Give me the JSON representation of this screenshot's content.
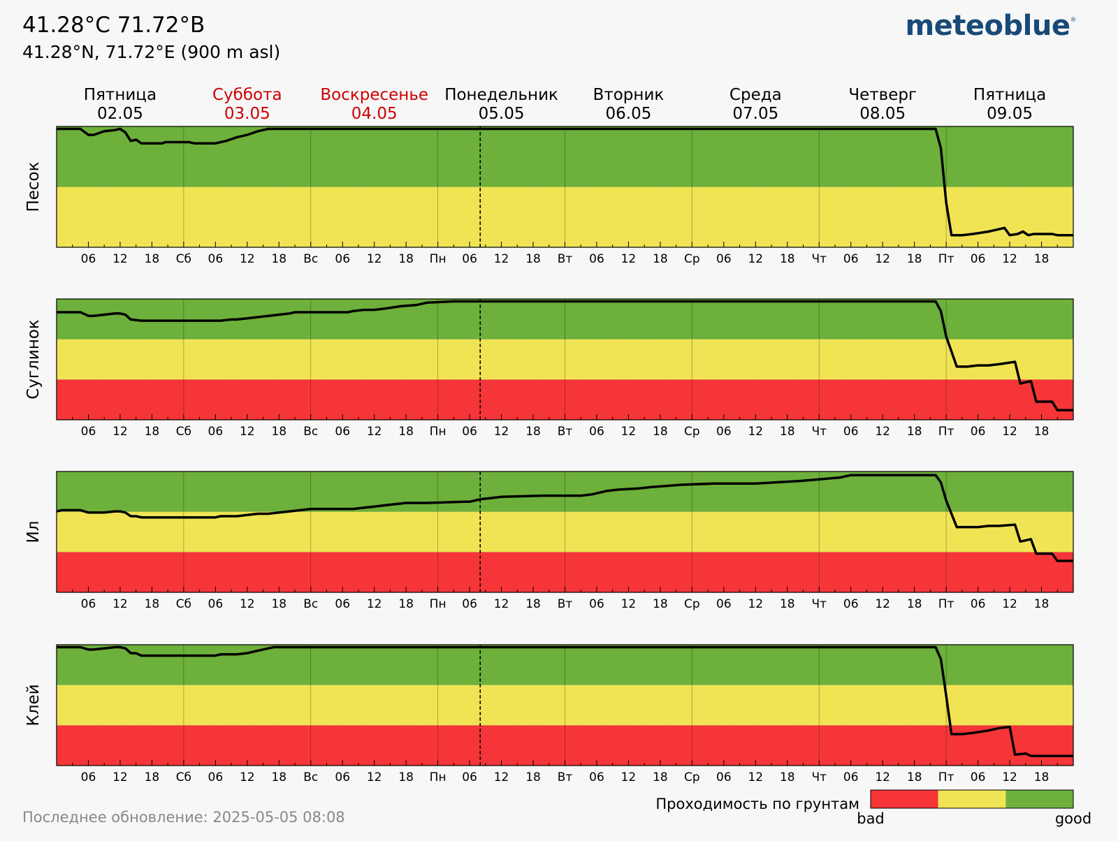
{
  "header": {
    "title": "41.28°C 71.72°В",
    "subtitle": "41.28°N, 71.72°E (900 m asl)",
    "logo": "meteoblue",
    "logo_mark": "®"
  },
  "footer": {
    "last_update": "Последнее обновление: 2025-05-05 08:08"
  },
  "legend": {
    "title": "Проходимость по грунтам",
    "left": "bad",
    "right": "good",
    "colors": [
      "#f63538",
      "#f0e455",
      "#6db03b"
    ]
  },
  "colors": {
    "good": "#6db03b",
    "medium": "#f0e455",
    "bad": "#f63538",
    "weekend": "#cc0000",
    "line": "#000000"
  },
  "chart_data": {
    "type": "line",
    "days": [
      {
        "name": "Пятница",
        "date": "02.05",
        "weekend": false
      },
      {
        "name": "Суббота",
        "date": "03.05",
        "weekend": true
      },
      {
        "name": "Воскресенье",
        "date": "04.05",
        "weekend": true
      },
      {
        "name": "Понедельник",
        "date": "05.05",
        "weekend": false
      },
      {
        "name": "Вторник",
        "date": "06.05",
        "weekend": false
      },
      {
        "name": "Среда",
        "date": "07.05",
        "weekend": false
      },
      {
        "name": "Четверг",
        "date": "08.05",
        "weekend": false
      },
      {
        "name": "Пятница",
        "date": "09.05",
        "weekend": false
      }
    ],
    "x_tick_labels": [
      "06",
      "12",
      "18",
      "Сб",
      "06",
      "12",
      "18",
      "Вс",
      "06",
      "12",
      "18",
      "Пн",
      "06",
      "12",
      "18",
      "Вт",
      "06",
      "12",
      "18",
      "Ср",
      "06",
      "12",
      "18",
      "Чт",
      "06",
      "12",
      "18",
      "Пт",
      "06",
      "12",
      "18"
    ],
    "x_unit": "hours since 02.05 00:00",
    "x_range": [
      0,
      192
    ],
    "now_marker_hour": 80,
    "y_range": [
      0,
      1
    ],
    "panels": [
      {
        "name": "Песок",
        "zones": [
          "medium",
          "good"
        ],
        "zone_bounds": [
          0,
          0.5,
          1
        ],
        "points": [
          [
            0,
            0.98
          ],
          [
            4.5,
            0.98
          ],
          [
            6,
            0.93
          ],
          [
            7,
            0.93
          ],
          [
            9,
            0.96
          ],
          [
            11,
            0.97
          ],
          [
            12,
            0.98
          ],
          [
            13,
            0.95
          ],
          [
            14,
            0.88
          ],
          [
            15,
            0.89
          ],
          [
            16,
            0.86
          ],
          [
            20,
            0.86
          ],
          [
            20.5,
            0.87
          ],
          [
            25,
            0.87
          ],
          [
            26,
            0.86
          ],
          [
            30,
            0.86
          ],
          [
            31,
            0.87
          ],
          [
            32,
            0.88
          ],
          [
            34,
            0.91
          ],
          [
            36,
            0.93
          ],
          [
            38,
            0.96
          ],
          [
            39,
            0.97
          ],
          [
            40,
            0.98
          ],
          [
            48,
            0.98
          ],
          [
            96,
            0.98
          ],
          [
            144,
            0.98
          ],
          [
            166,
            0.98
          ],
          [
            167,
            0.82
          ],
          [
            168,
            0.37
          ],
          [
            169,
            0.1
          ],
          [
            171,
            0.1
          ],
          [
            173,
            0.11
          ],
          [
            176,
            0.13
          ],
          [
            178,
            0.15
          ],
          [
            179,
            0.16
          ],
          [
            180,
            0.1
          ],
          [
            181.5,
            0.11
          ],
          [
            182.5,
            0.13
          ],
          [
            183.5,
            0.1
          ],
          [
            184.5,
            0.11
          ],
          [
            188,
            0.11
          ],
          [
            189,
            0.1
          ],
          [
            192,
            0.1
          ]
        ]
      },
      {
        "name": "Суглинок",
        "zones": [
          "bad",
          "medium",
          "good"
        ],
        "zone_bounds": [
          0,
          0.333,
          0.667,
          1
        ],
        "points": [
          [
            0,
            0.89
          ],
          [
            4.5,
            0.89
          ],
          [
            6,
            0.86
          ],
          [
            7,
            0.86
          ],
          [
            9,
            0.87
          ],
          [
            11,
            0.88
          ],
          [
            12,
            0.88
          ],
          [
            13,
            0.87
          ],
          [
            14,
            0.83
          ],
          [
            16,
            0.82
          ],
          [
            25,
            0.82
          ],
          [
            26,
            0.82
          ],
          [
            31,
            0.82
          ],
          [
            33,
            0.83
          ],
          [
            34,
            0.83
          ],
          [
            36,
            0.84
          ],
          [
            38,
            0.85
          ],
          [
            40,
            0.86
          ],
          [
            42,
            0.87
          ],
          [
            44,
            0.88
          ],
          [
            45,
            0.89
          ],
          [
            55,
            0.89
          ],
          [
            56,
            0.9
          ],
          [
            58,
            0.91
          ],
          [
            60,
            0.91
          ],
          [
            62,
            0.92
          ],
          [
            65,
            0.94
          ],
          [
            68,
            0.95
          ],
          [
            70,
            0.97
          ],
          [
            75,
            0.98
          ],
          [
            96,
            0.98
          ],
          [
            144,
            0.98
          ],
          [
            166,
            0.98
          ],
          [
            167,
            0.9
          ],
          [
            168,
            0.69
          ],
          [
            170,
            0.44
          ],
          [
            172,
            0.44
          ],
          [
            174,
            0.45
          ],
          [
            176,
            0.45
          ],
          [
            178,
            0.46
          ],
          [
            181,
            0.48
          ],
          [
            182,
            0.3
          ],
          [
            184,
            0.32
          ],
          [
            185,
            0.15
          ],
          [
            188,
            0.15
          ],
          [
            189,
            0.08
          ],
          [
            192,
            0.08
          ]
        ]
      },
      {
        "name": "Ил",
        "zones": [
          "bad",
          "medium",
          "good"
        ],
        "zone_bounds": [
          0,
          0.333,
          0.667,
          1
        ],
        "points": [
          [
            0,
            0.67
          ],
          [
            1,
            0.68
          ],
          [
            4.5,
            0.68
          ],
          [
            6,
            0.66
          ],
          [
            7,
            0.66
          ],
          [
            9,
            0.66
          ],
          [
            11,
            0.67
          ],
          [
            12,
            0.67
          ],
          [
            13,
            0.66
          ],
          [
            14,
            0.63
          ],
          [
            15,
            0.63
          ],
          [
            16,
            0.62
          ],
          [
            25,
            0.62
          ],
          [
            30,
            0.62
          ],
          [
            31,
            0.63
          ],
          [
            32,
            0.63
          ],
          [
            34,
            0.63
          ],
          [
            36,
            0.64
          ],
          [
            38,
            0.65
          ],
          [
            40,
            0.65
          ],
          [
            42,
            0.66
          ],
          [
            44,
            0.67
          ],
          [
            48,
            0.69
          ],
          [
            54,
            0.69
          ],
          [
            56,
            0.69
          ],
          [
            58,
            0.7
          ],
          [
            60,
            0.71
          ],
          [
            62,
            0.72
          ],
          [
            64,
            0.73
          ],
          [
            66,
            0.74
          ],
          [
            70,
            0.74
          ],
          [
            77,
            0.75
          ],
          [
            78,
            0.75
          ],
          [
            80,
            0.77
          ],
          [
            82,
            0.78
          ],
          [
            84,
            0.79
          ],
          [
            92,
            0.8
          ],
          [
            98,
            0.8
          ],
          [
            99,
            0.8
          ],
          [
            101,
            0.81
          ],
          [
            104,
            0.84
          ],
          [
            106,
            0.85
          ],
          [
            110,
            0.86
          ],
          [
            112,
            0.87
          ],
          [
            118,
            0.89
          ],
          [
            124,
            0.9
          ],
          [
            132,
            0.9
          ],
          [
            140,
            0.92
          ],
          [
            148,
            0.95
          ],
          [
            150,
            0.97
          ],
          [
            156,
            0.97
          ],
          [
            166,
            0.97
          ],
          [
            167,
            0.91
          ],
          [
            168,
            0.76
          ],
          [
            170,
            0.54
          ],
          [
            173,
            0.54
          ],
          [
            174,
            0.54
          ],
          [
            176,
            0.55
          ],
          [
            178,
            0.55
          ],
          [
            181,
            0.56
          ],
          [
            182,
            0.42
          ],
          [
            184,
            0.44
          ],
          [
            185,
            0.32
          ],
          [
            188,
            0.32
          ],
          [
            189,
            0.26
          ],
          [
            192,
            0.26
          ]
        ]
      },
      {
        "name": "Клей",
        "zones": [
          "bad",
          "medium",
          "good"
        ],
        "zone_bounds": [
          0,
          0.333,
          0.667,
          1
        ],
        "points": [
          [
            0,
            0.98
          ],
          [
            4.5,
            0.98
          ],
          [
            6,
            0.96
          ],
          [
            7,
            0.96
          ],
          [
            9,
            0.97
          ],
          [
            11,
            0.98
          ],
          [
            12,
            0.98
          ],
          [
            13,
            0.97
          ],
          [
            14,
            0.93
          ],
          [
            15,
            0.93
          ],
          [
            16,
            0.91
          ],
          [
            25,
            0.91
          ],
          [
            26,
            0.91
          ],
          [
            30,
            0.91
          ],
          [
            31,
            0.92
          ],
          [
            34,
            0.92
          ],
          [
            36,
            0.93
          ],
          [
            38,
            0.95
          ],
          [
            40,
            0.97
          ],
          [
            41,
            0.98
          ],
          [
            48,
            0.98
          ],
          [
            96,
            0.98
          ],
          [
            144,
            0.98
          ],
          [
            166,
            0.98
          ],
          [
            167,
            0.88
          ],
          [
            168,
            0.58
          ],
          [
            169,
            0.26
          ],
          [
            171,
            0.26
          ],
          [
            173,
            0.27
          ],
          [
            176,
            0.29
          ],
          [
            178,
            0.31
          ],
          [
            180,
            0.32
          ],
          [
            181,
            0.09
          ],
          [
            183,
            0.1
          ],
          [
            184,
            0.08
          ],
          [
            192,
            0.08
          ]
        ]
      }
    ]
  }
}
